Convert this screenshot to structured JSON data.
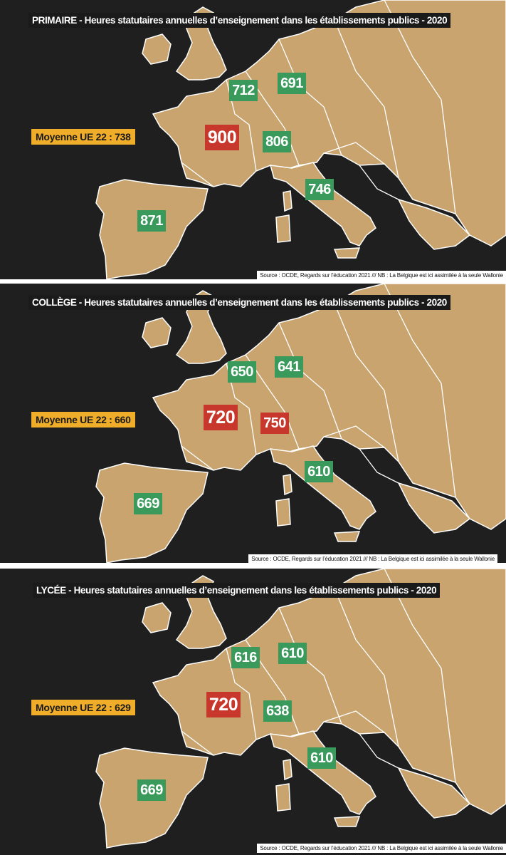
{
  "panels": [
    {
      "title": "PRIMAIRE - Heures statutaires annuelles d’enseignement dans les établissements publics - 2020",
      "average": "Moyenne UE 22 : 738",
      "values": {
        "belgium": "712",
        "germany": "691",
        "france": "900",
        "switzerland": "806",
        "italy": "746",
        "spain": "871"
      },
      "highlight": {
        "france": "red",
        "switzerland": "green"
      },
      "source": "Source : OCDE, Regards sur l’éducation 2021 /// NB : La Belgique est ici assimilée à la seule Wallonie"
    },
    {
      "title": "COLLÈGE - Heures statutaires annuelles d’enseignement dans les établissements publics - 2020",
      "average": "Moyenne UE 22 : 660",
      "values": {
        "belgium": "650",
        "germany": "641",
        "france": "720",
        "switzerland": "750",
        "italy": "610",
        "spain": "669"
      },
      "highlight": {
        "france": "red",
        "switzerland": "red"
      },
      "source": "Source : OCDE, Regards sur l’éducation 2021 /// NB : La Belgique est ici assimilée à la seule Wallonie"
    },
    {
      "title": "LYCÉE - Heures statutaires annuelles d’enseignement dans les établissements publics - 2020",
      "average": "Moyenne UE 22 : 629",
      "values": {
        "belgium": "616",
        "germany": "610",
        "france": "720",
        "switzerland": "638",
        "italy": "610",
        "spain": "669"
      },
      "highlight": {
        "france": "red",
        "switzerland": "green"
      },
      "source": "Source : OCDE, Regards sur l’éducation 2021 /// NB : La Belgique est ici assimilée à la seule Wallonie"
    }
  ],
  "colors": {
    "land": "#c9a46e",
    "sea": "#1f1f1f",
    "border": "#ffffff",
    "green": "#3a9a5c",
    "red": "#c8372c",
    "average_bg": "#f0ad2a"
  }
}
